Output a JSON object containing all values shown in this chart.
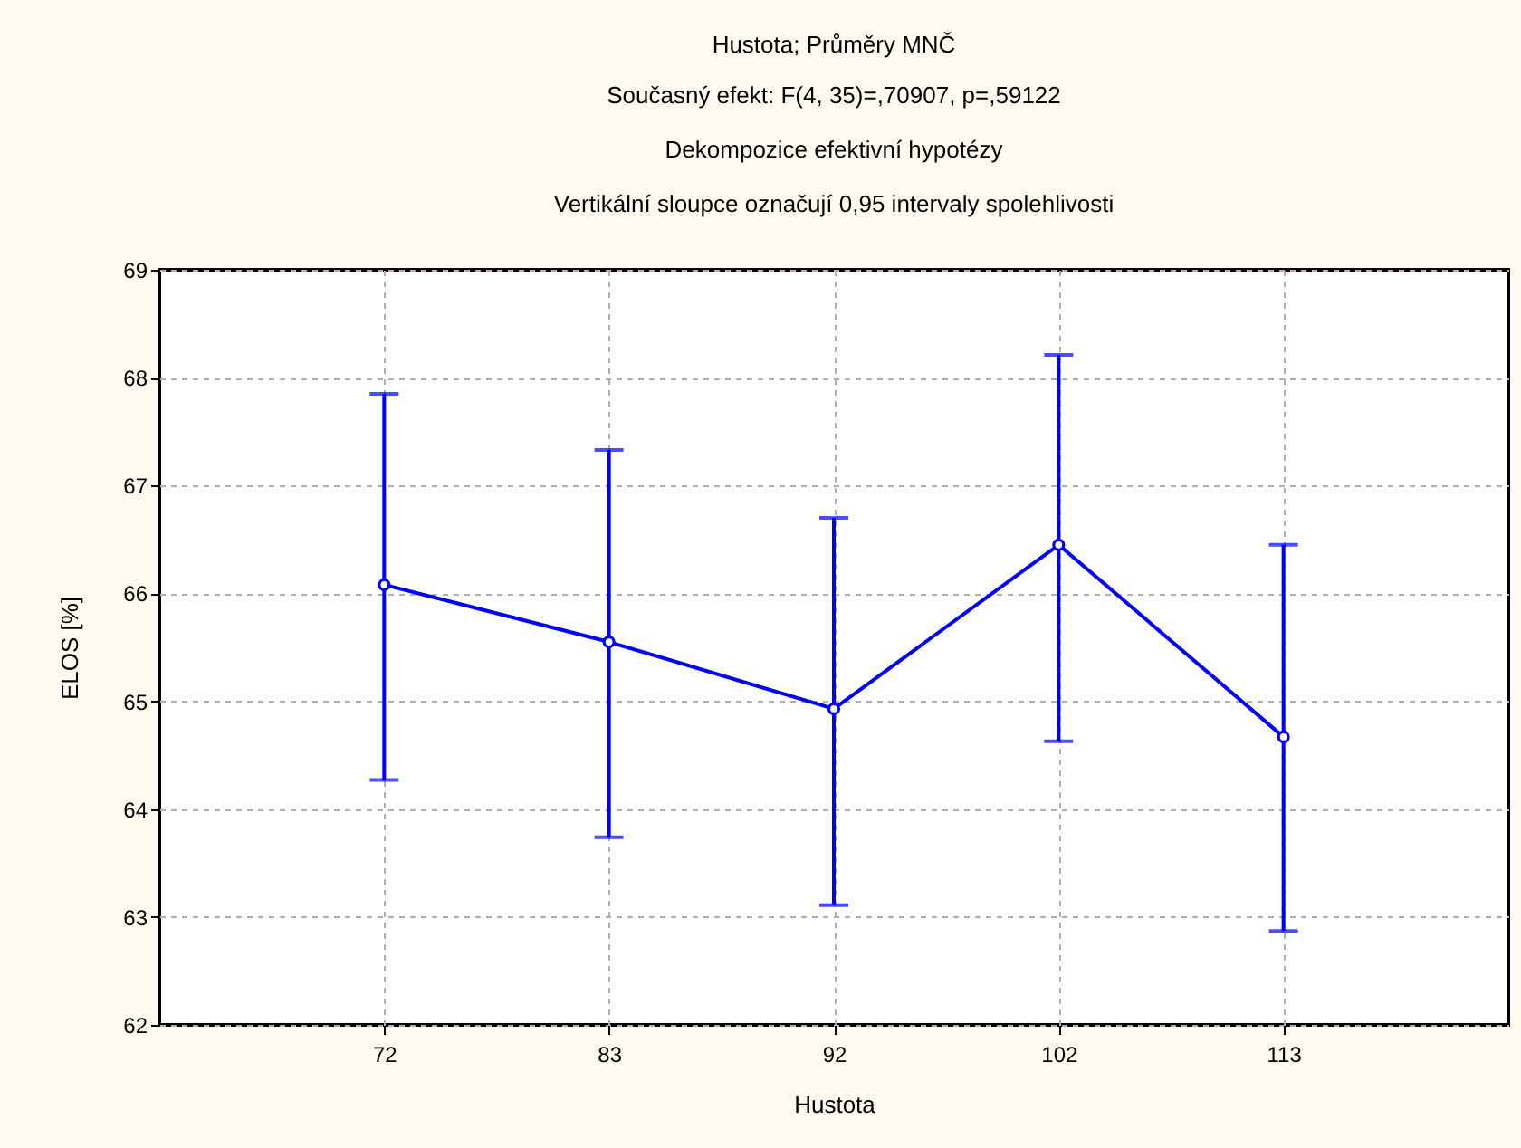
{
  "chart_data": {
    "type": "line",
    "title": "Hustota; Průměry MNČ",
    "subtitle": "Současný efekt: F(4, 35)=,70907, p=,59122\nDekompozice efektivní hypotézy\nVertikální sloupce označují 0,95 intervaly spolehlivosti",
    "xlabel": "Hustota",
    "ylabel": "ELOS [%]",
    "categories": [
      "72",
      "83",
      "92",
      "102",
      "113"
    ],
    "series": [
      {
        "color": "#0000ff",
        "values": [
          66.08,
          65.55,
          64.93,
          66.45,
          64.67
        ],
        "errors": [
          [
            64.27,
            67.85
          ],
          [
            63.74,
            67.33
          ],
          [
            63.11,
            66.7
          ],
          [
            64.63,
            68.21
          ],
          [
            62.87,
            66.45
          ]
        ]
      }
    ],
    "ylim": [
      62,
      69
    ],
    "yticks": [
      62,
      63,
      64,
      65,
      66,
      67,
      68,
      69
    ],
    "grid": true,
    "marker": "circle",
    "line_style": "solid"
  }
}
